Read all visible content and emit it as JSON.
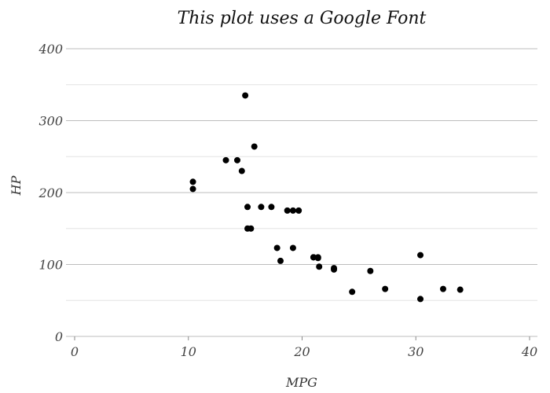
{
  "chart_data": {
    "type": "scatter",
    "title": "This plot uses a Google Font",
    "xlabel": "MPG",
    "ylabel": "HP",
    "xlim": [
      0,
      40
    ],
    "ylim": [
      0,
      400
    ],
    "x_ticks": [
      "0",
      "10",
      "20",
      "30",
      "40"
    ],
    "y_ticks": [
      "0",
      "100",
      "200",
      "300",
      "400"
    ],
    "grid": true,
    "point_color": "#000000",
    "points": [
      {
        "x": 21.0,
        "y": 110
      },
      {
        "x": 21.0,
        "y": 110
      },
      {
        "x": 22.8,
        "y": 93
      },
      {
        "x": 21.4,
        "y": 110
      },
      {
        "x": 18.7,
        "y": 175
      },
      {
        "x": 18.1,
        "y": 105
      },
      {
        "x": 14.3,
        "y": 245
      },
      {
        "x": 24.4,
        "y": 62
      },
      {
        "x": 22.8,
        "y": 95
      },
      {
        "x": 19.2,
        "y": 123
      },
      {
        "x": 17.8,
        "y": 123
      },
      {
        "x": 16.4,
        "y": 180
      },
      {
        "x": 17.3,
        "y": 180
      },
      {
        "x": 15.2,
        "y": 180
      },
      {
        "x": 10.4,
        "y": 205
      },
      {
        "x": 10.4,
        "y": 215
      },
      {
        "x": 14.7,
        "y": 230
      },
      {
        "x": 32.4,
        "y": 66
      },
      {
        "x": 30.4,
        "y": 52
      },
      {
        "x": 33.9,
        "y": 65
      },
      {
        "x": 21.5,
        "y": 97
      },
      {
        "x": 15.5,
        "y": 150
      },
      {
        "x": 15.2,
        "y": 150
      },
      {
        "x": 13.3,
        "y": 245
      },
      {
        "x": 19.2,
        "y": 175
      },
      {
        "x": 27.3,
        "y": 66
      },
      {
        "x": 26.0,
        "y": 91
      },
      {
        "x": 30.4,
        "y": 113
      },
      {
        "x": 15.8,
        "y": 264
      },
      {
        "x": 19.7,
        "y": 175
      },
      {
        "x": 15.0,
        "y": 335
      },
      {
        "x": 21.4,
        "y": 109
      }
    ]
  }
}
